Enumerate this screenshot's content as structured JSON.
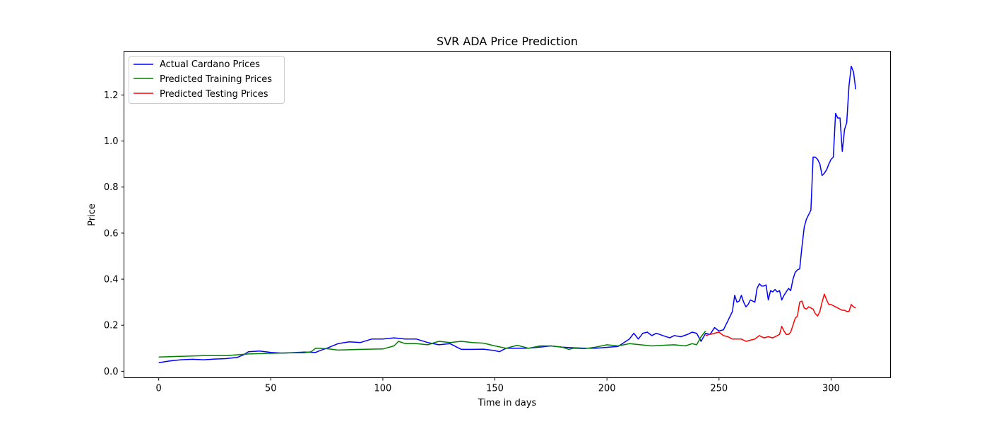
{
  "chart_data": {
    "type": "line",
    "title": "SVR ADA Price Prediction",
    "xlabel": "Time in days",
    "ylabel": "Price",
    "xlim": [
      -15.5,
      326.5
    ],
    "ylim": [
      -0.028,
      1.39
    ],
    "xticks": [
      0,
      50,
      100,
      150,
      200,
      250,
      300
    ],
    "yticks": [
      0.0,
      0.2,
      0.4,
      0.6,
      0.8,
      1.0,
      1.2
    ],
    "ytick_labels": [
      "0.0",
      "0.2",
      "0.4",
      "0.6",
      "0.8",
      "1.0",
      "1.2"
    ],
    "grid": false,
    "legend_position": "upper-left",
    "series": [
      {
        "name": "Actual Cardano Prices",
        "color": "#0000ff",
        "x": [
          0,
          5,
          10,
          15,
          20,
          25,
          30,
          35,
          38,
          40,
          45,
          50,
          55,
          60,
          65,
          70,
          72,
          75,
          80,
          85,
          90,
          95,
          100,
          105,
          110,
          115,
          120,
          125,
          130,
          135,
          140,
          145,
          150,
          152,
          155,
          160,
          165,
          170,
          175,
          180,
          185,
          190,
          195,
          200,
          205,
          210,
          212,
          214,
          216,
          218,
          220,
          222,
          225,
          228,
          230,
          233,
          236,
          238,
          240,
          242,
          244,
          246,
          248,
          250,
          252,
          254,
          256,
          257,
          258,
          259,
          260,
          261,
          262,
          263,
          264,
          265,
          266,
          267,
          268,
          269,
          270,
          271,
          272,
          273,
          274,
          275,
          276,
          277,
          278,
          279,
          280,
          281,
          282,
          283,
          284,
          285,
          286,
          287,
          288,
          289,
          290,
          291,
          292,
          293,
          294,
          295,
          296,
          297,
          298,
          299,
          300,
          301,
          302,
          303,
          304,
          305,
          306,
          307,
          308,
          309,
          310,
          311
        ],
        "y": [
          0.037,
          0.045,
          0.05,
          0.052,
          0.05,
          0.053,
          0.055,
          0.06,
          0.072,
          0.085,
          0.088,
          0.082,
          0.079,
          0.081,
          0.083,
          0.082,
          0.09,
          0.1,
          0.12,
          0.128,
          0.125,
          0.14,
          0.14,
          0.145,
          0.14,
          0.14,
          0.125,
          0.115,
          0.12,
          0.095,
          0.095,
          0.096,
          0.09,
          0.085,
          0.1,
          0.1,
          0.1,
          0.105,
          0.11,
          0.105,
          0.102,
          0.1,
          0.1,
          0.104,
          0.108,
          0.14,
          0.165,
          0.14,
          0.165,
          0.17,
          0.155,
          0.165,
          0.155,
          0.145,
          0.155,
          0.15,
          0.16,
          0.17,
          0.165,
          0.13,
          0.165,
          0.16,
          0.19,
          0.175,
          0.18,
          0.22,
          0.26,
          0.33,
          0.3,
          0.305,
          0.33,
          0.3,
          0.28,
          0.29,
          0.31,
          0.305,
          0.3,
          0.36,
          0.38,
          0.37,
          0.37,
          0.375,
          0.31,
          0.35,
          0.345,
          0.355,
          0.345,
          0.35,
          0.31,
          0.33,
          0.345,
          0.36,
          0.35,
          0.4,
          0.43,
          0.44,
          0.445,
          0.54,
          0.625,
          0.66,
          0.68,
          0.7,
          0.93,
          0.93,
          0.92,
          0.9,
          0.85,
          0.86,
          0.875,
          0.9,
          0.92,
          0.93,
          1.12,
          1.1,
          1.1,
          0.955,
          1.05,
          1.08,
          1.24,
          1.325,
          1.3,
          1.225
        ]
      },
      {
        "name": "Predicted Training Prices",
        "color": "#008000",
        "x": [
          0,
          10,
          20,
          30,
          40,
          50,
          60,
          65,
          68,
          70,
          75,
          80,
          90,
          100,
          105,
          107,
          110,
          115,
          120,
          125,
          130,
          135,
          140,
          145,
          150,
          155,
          160,
          165,
          170,
          175,
          180,
          183,
          185,
          190,
          195,
          200,
          205,
          210,
          215,
          220,
          225,
          230,
          235,
          238,
          240,
          242,
          244
        ],
        "y": [
          0.062,
          0.065,
          0.068,
          0.068,
          0.075,
          0.078,
          0.08,
          0.08,
          0.085,
          0.1,
          0.098,
          0.092,
          0.095,
          0.097,
          0.11,
          0.13,
          0.12,
          0.12,
          0.115,
          0.13,
          0.125,
          0.13,
          0.125,
          0.122,
          0.11,
          0.1,
          0.113,
          0.1,
          0.11,
          0.11,
          0.105,
          0.095,
          0.1,
          0.098,
          0.105,
          0.115,
          0.11,
          0.12,
          0.115,
          0.11,
          0.113,
          0.115,
          0.11,
          0.12,
          0.115,
          0.15,
          0.175
        ]
      },
      {
        "name": "Predicted Testing Prices",
        "color": "#ff0000",
        "x": [
          244,
          246,
          248,
          250,
          252,
          254,
          256,
          258,
          260,
          262,
          264,
          266,
          268,
          270,
          272,
          274,
          276,
          277,
          278,
          279,
          280,
          281,
          282,
          283,
          284,
          285,
          286,
          287,
          288,
          289,
          290,
          291,
          292,
          293,
          294,
          295,
          296,
          297,
          298,
          299,
          300,
          301,
          302,
          303,
          304,
          305,
          306,
          307,
          308,
          309,
          310,
          311
        ],
        "y": [
          0.155,
          0.16,
          0.165,
          0.17,
          0.155,
          0.15,
          0.14,
          0.14,
          0.14,
          0.13,
          0.135,
          0.14,
          0.155,
          0.145,
          0.15,
          0.145,
          0.155,
          0.16,
          0.195,
          0.175,
          0.16,
          0.16,
          0.17,
          0.2,
          0.23,
          0.24,
          0.3,
          0.305,
          0.275,
          0.27,
          0.28,
          0.275,
          0.27,
          0.25,
          0.24,
          0.26,
          0.3,
          0.335,
          0.31,
          0.29,
          0.29,
          0.285,
          0.28,
          0.275,
          0.27,
          0.265,
          0.265,
          0.26,
          0.26,
          0.29,
          0.28,
          0.275
        ]
      }
    ]
  }
}
